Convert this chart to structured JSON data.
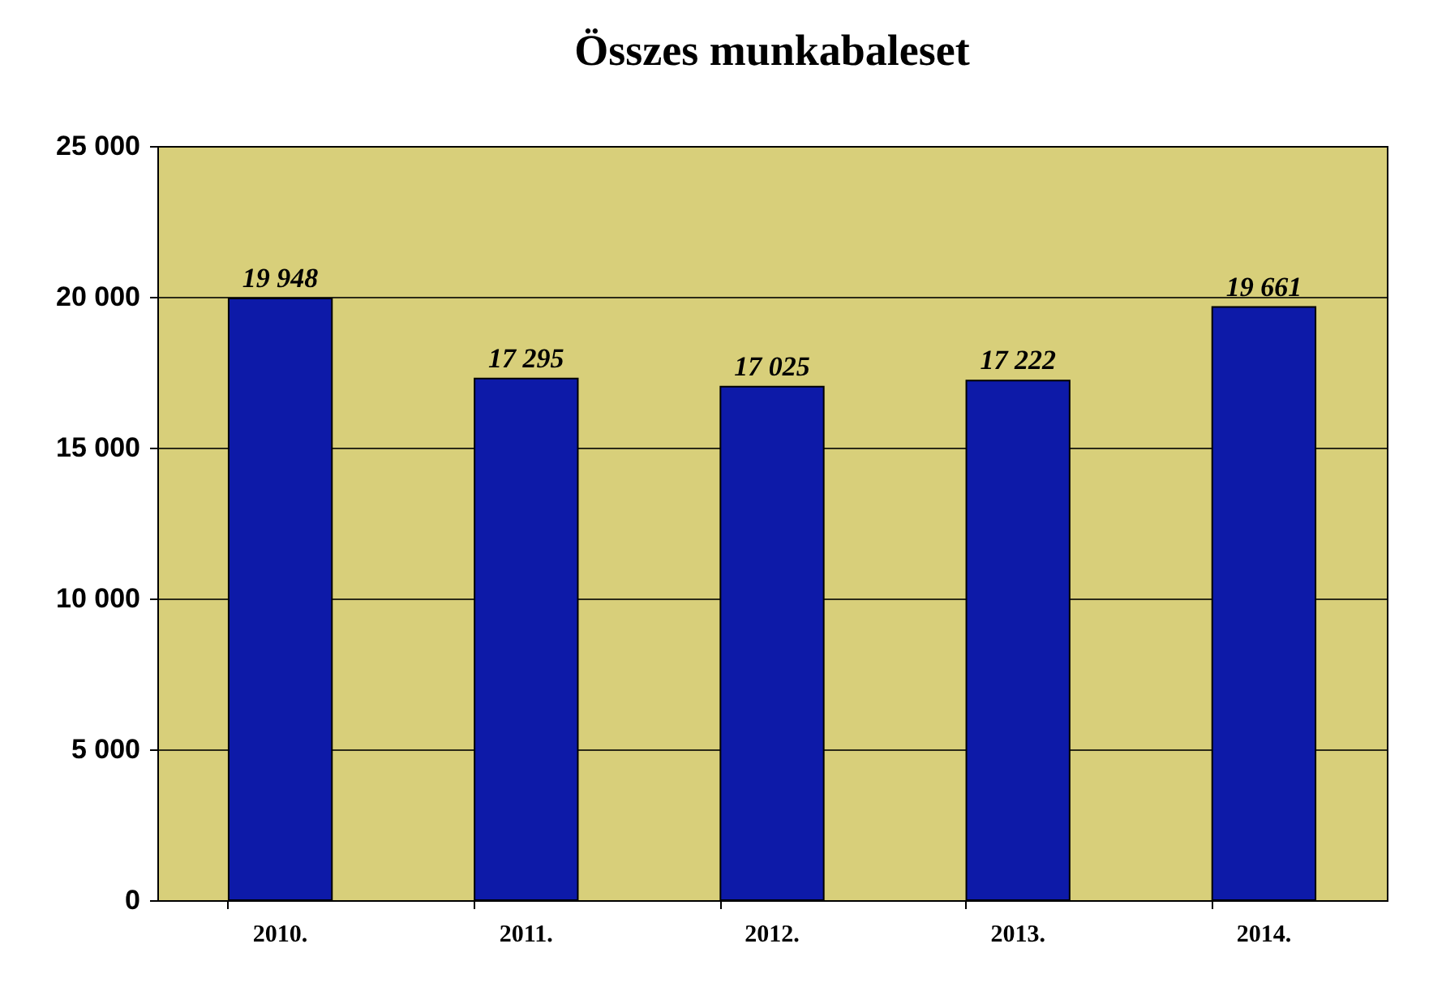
{
  "chart_data": {
    "type": "bar",
    "title": "Összes munkabaleset",
    "categories": [
      "2010.",
      "2011.",
      "2012.",
      "2013.",
      "2014."
    ],
    "values": [
      19948,
      17295,
      17025,
      17222,
      19661
    ],
    "value_labels": [
      "19 948",
      "17 295",
      "17 025",
      "17 222",
      "19 661"
    ],
    "color": "#0d1aa8",
    "ylim": [
      0,
      25000
    ],
    "yticks": [
      {
        "value": 0,
        "label": "0"
      },
      {
        "value": 5000,
        "label": "5 000"
      },
      {
        "value": 10000,
        "label": "10 000"
      },
      {
        "value": 15000,
        "label": "15 000"
      },
      {
        "value": 20000,
        "label": "20 000"
      },
      {
        "value": 25000,
        "label": "25 000"
      }
    ],
    "grid": "y"
  }
}
